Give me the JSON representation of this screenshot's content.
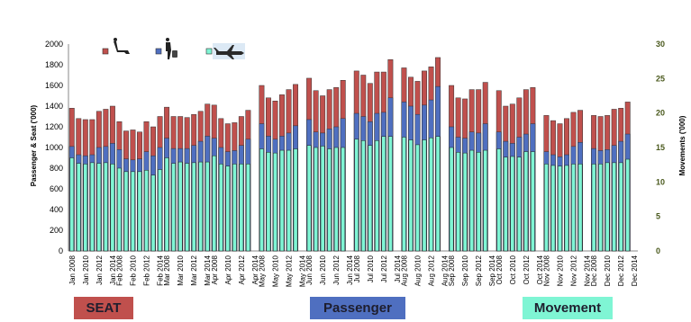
{
  "chart_data": {
    "type": "bar",
    "categories": [
      "Jan",
      "Feb",
      "Mar",
      "Apr",
      "May",
      "Jun",
      "Jul",
      "Aug",
      "Sep",
      "Oct",
      "Nov",
      "Dec"
    ],
    "years": [
      "2008",
      "2009",
      "2010",
      "2011",
      "2012",
      "2013",
      "2014"
    ],
    "ylabel": "Passenger & Seat ('000)",
    "y2label": "Movements ('000)",
    "ylim": [
      0,
      2000
    ],
    "y2lim": [
      0,
      30
    ],
    "yticks": [
      "0",
      "200",
      "400",
      "600",
      "800",
      "1000",
      "1200",
      "1400",
      "1600",
      "1800",
      "2000"
    ],
    "y2ticks": [
      "0",
      "5",
      "10",
      "15",
      "20",
      "25",
      "30"
    ],
    "grid": false,
    "legend_position": "top-left",
    "series": [
      {
        "name": "SEAT",
        "color": "#c0504d",
        "values": [
          [
            1380,
            1280,
            1270,
            1270,
            1350,
            1370,
            1400
          ],
          [
            1250,
            1160,
            1170,
            1150,
            1250,
            1200,
            1300
          ],
          [
            1390,
            1300,
            1300,
            1290,
            1320,
            1350,
            1420
          ],
          [
            1410,
            1280,
            1230,
            1240,
            1300,
            1360,
            0
          ],
          [
            1600,
            1480,
            1450,
            1510,
            1560,
            1610,
            0
          ],
          [
            1670,
            1550,
            1500,
            1560,
            1580,
            1650,
            0
          ],
          [
            1740,
            1700,
            1620,
            1730,
            1730,
            1850,
            0
          ],
          [
            1770,
            1680,
            1640,
            1740,
            1780,
            1870,
            0
          ],
          [
            1600,
            1480,
            1470,
            1560,
            1560,
            1630,
            0
          ],
          [
            1550,
            1400,
            1420,
            1480,
            1560,
            1580,
            0
          ],
          [
            1310,
            1260,
            1230,
            1280,
            1340,
            1360,
            0
          ],
          [
            1310,
            1300,
            1310,
            1370,
            1380,
            1440,
            0
          ]
        ]
      },
      {
        "name": "Passenger",
        "color": "#4f6fc0",
        "values": [
          [
            1010,
            930,
            920,
            930,
            1000,
            1010,
            1040
          ],
          [
            980,
            890,
            880,
            890,
            960,
            920,
            1000
          ],
          [
            1090,
            990,
            990,
            990,
            1020,
            1060,
            1110
          ],
          [
            1090,
            1000,
            960,
            970,
            1020,
            1080,
            0
          ],
          [
            1230,
            1110,
            1080,
            1110,
            1140,
            1210,
            0
          ],
          [
            1270,
            1150,
            1140,
            1180,
            1200,
            1280,
            0
          ],
          [
            1330,
            1300,
            1250,
            1330,
            1340,
            1480,
            0
          ],
          [
            1440,
            1400,
            1320,
            1410,
            1460,
            1590,
            0
          ],
          [
            1200,
            1100,
            1090,
            1150,
            1140,
            1230,
            0
          ],
          [
            1150,
            1060,
            1040,
            1100,
            1130,
            1230,
            0
          ],
          [
            960,
            930,
            910,
            930,
            1010,
            1050,
            0
          ],
          [
            990,
            970,
            980,
            1020,
            1060,
            1130,
            0
          ]
        ]
      },
      {
        "name": "Movement",
        "color": "#7ff5d4",
        "values": [
          [
            13.5,
            12.7,
            12.6,
            12.8,
            12.7,
            12.8,
            12.6
          ],
          [
            12.0,
            11.5,
            11.5,
            11.5,
            11.7,
            11.0,
            11.8
          ],
          [
            13.5,
            12.7,
            12.9,
            12.7,
            12.8,
            12.9,
            12.9
          ],
          [
            13.8,
            12.6,
            12.3,
            12.6,
            12.6,
            12.6,
            0
          ],
          [
            14.8,
            14.3,
            14.2,
            14.6,
            14.6,
            14.8,
            0
          ],
          [
            15.3,
            15.0,
            15.2,
            14.8,
            15.0,
            15.0,
            0
          ],
          [
            16.2,
            16.0,
            15.3,
            16.0,
            16.6,
            16.6,
            0
          ],
          [
            16.5,
            16.1,
            15.4,
            16.1,
            16.4,
            16.6,
            0
          ],
          [
            15.0,
            14.3,
            14.2,
            14.6,
            14.3,
            14.6,
            0
          ],
          [
            14.8,
            13.6,
            13.7,
            13.6,
            14.4,
            14.4,
            0
          ],
          [
            12.6,
            12.4,
            12.3,
            12.4,
            12.6,
            12.6,
            0
          ],
          [
            12.6,
            12.6,
            12.8,
            12.8,
            12.8,
            13.3,
            0
          ]
        ]
      }
    ],
    "legend": {
      "icons": [
        "seat-icon",
        "passenger-icon",
        "aircraft-icon"
      ]
    }
  },
  "legend_boxes": [
    {
      "label": "SEAT",
      "color": "#c0504d"
    },
    {
      "label": "Passenger",
      "color": "#4f6fc0"
    },
    {
      "label": "Movement",
      "color": "#7ff5d4"
    }
  ]
}
